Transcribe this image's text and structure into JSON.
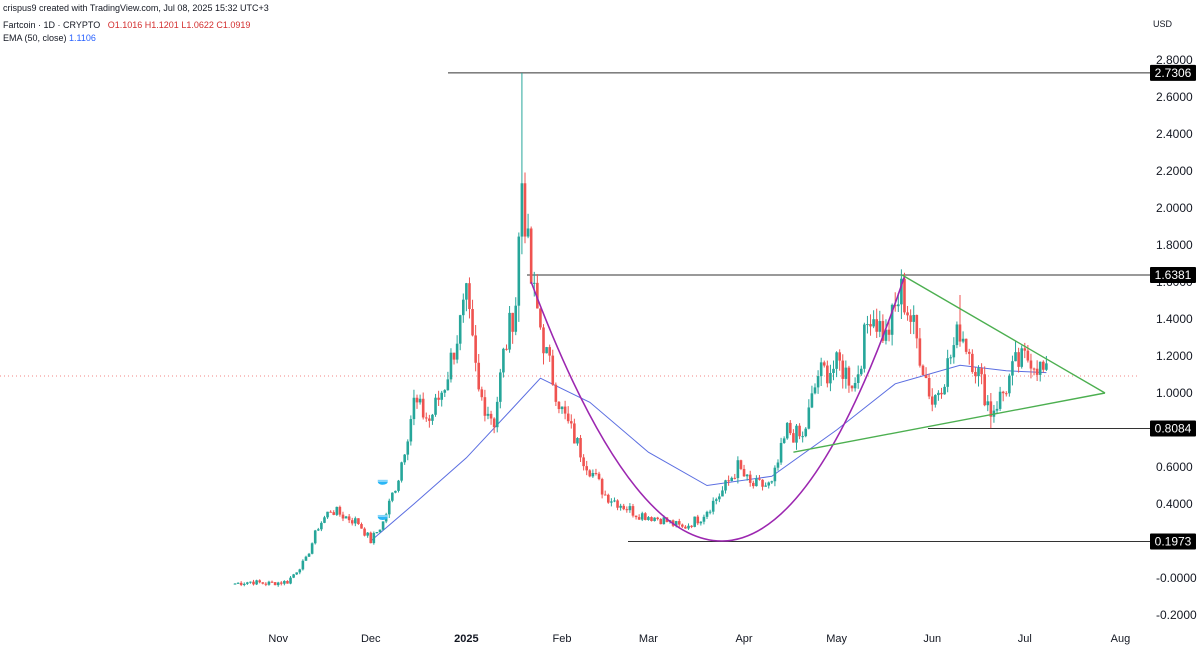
{
  "header": {
    "credit": "crispus9 created with TradingView.com, Jul 08, 2025 15:32 UTC+3",
    "symbol": "Fartcoin · 1D · CRYPTO",
    "o": "O1.1016",
    "h": "H1.1201",
    "l": "L1.0622",
    "c": "C1.0919",
    "ema_label": "EMA (50, close)",
    "ema_value": "1.1106",
    "currency": "USD"
  },
  "colors": {
    "up": "#26a69a",
    "down": "#ef5350",
    "ema": "#5b6ee1",
    "cup": "#9c27b0",
    "triangle": "#4caf50",
    "level": "#333333"
  },
  "chart_data": {
    "type": "candlestick",
    "y_unit": "USD",
    "ylim": [
      -0.25,
      2.85
    ],
    "yticks": [
      -0.2,
      0.0,
      0.2,
      0.4,
      0.6,
      0.8,
      1.0,
      1.2,
      1.4,
      1.6,
      1.8,
      2.0,
      2.2,
      2.4,
      2.6,
      2.8
    ],
    "ytick_labels": [
      "-0.2000",
      "-0.0000",
      "0.4000",
      "0.6000",
      "0.8000",
      "1.0000",
      "1.2000",
      "1.4000",
      "1.6000",
      "1.8000",
      "2.0000",
      "2.2000",
      "2.4000",
      "2.6000",
      "2.8000"
    ],
    "ytick_values": [
      -0.2,
      0.0,
      0.4,
      0.6,
      0.8,
      1.0,
      1.2,
      1.4,
      1.6,
      1.8,
      2.0,
      2.2,
      2.4,
      2.6,
      2.8
    ],
    "xlim": [
      "2024-10-18",
      "2025-08-05"
    ],
    "xticks": [
      {
        "date": "2024-11-01",
        "label": "Nov",
        "bold": false
      },
      {
        "date": "2024-12-01",
        "label": "Dec",
        "bold": false
      },
      {
        "date": "2025-01-01",
        "label": "2025",
        "bold": true
      },
      {
        "date": "2025-02-01",
        "label": "Feb",
        "bold": false
      },
      {
        "date": "2025-03-01",
        "label": "Mar",
        "bold": false
      },
      {
        "date": "2025-04-01",
        "label": "Apr",
        "bold": false
      },
      {
        "date": "2025-05-01",
        "label": "May",
        "bold": false
      },
      {
        "date": "2025-06-01",
        "label": "Jun",
        "bold": false
      },
      {
        "date": "2025-07-01",
        "label": "Jul",
        "bold": false
      },
      {
        "date": "2025-08-01",
        "label": "Aug",
        "bold": false
      }
    ],
    "close_keypoints": [
      [
        "2024-10-18",
        -0.03
      ],
      [
        "2024-10-23",
        -0.02
      ],
      [
        "2024-10-28",
        -0.03
      ],
      [
        "2024-11-04",
        -0.02
      ],
      [
        "2024-11-10",
        0.1
      ],
      [
        "2024-11-14",
        0.28
      ],
      [
        "2024-11-18",
        0.37
      ],
      [
        "2024-11-23",
        0.33
      ],
      [
        "2024-11-27",
        0.3
      ],
      [
        "2024-12-01",
        0.2
      ],
      [
        "2024-12-05",
        0.3
      ],
      [
        "2024-12-10",
        0.55
      ],
      [
        "2024-12-15",
        0.95
      ],
      [
        "2024-12-20",
        0.85
      ],
      [
        "2024-12-25",
        1.05
      ],
      [
        "2025-01-01",
        1.5
      ],
      [
        "2025-01-05",
        1.0
      ],
      [
        "2025-01-10",
        0.85
      ],
      [
        "2025-01-13",
        1.2
      ],
      [
        "2025-01-17",
        1.5
      ],
      [
        "2025-01-19",
        2.15
      ],
      [
        "2025-01-20",
        1.95
      ],
      [
        "2025-01-22",
        1.6
      ],
      [
        "2025-01-27",
        1.2
      ],
      [
        "2025-02-01",
        0.9
      ],
      [
        "2025-02-08",
        0.65
      ],
      [
        "2025-02-15",
        0.45
      ],
      [
        "2025-02-25",
        0.35
      ],
      [
        "2025-03-05",
        0.32
      ],
      [
        "2025-03-12",
        0.27
      ],
      [
        "2025-03-18",
        0.33
      ],
      [
        "2025-03-25",
        0.47
      ],
      [
        "2025-03-30",
        0.6
      ],
      [
        "2025-04-03",
        0.5
      ],
      [
        "2025-04-10",
        0.5
      ],
      [
        "2025-04-15",
        0.8
      ],
      [
        "2025-04-20",
        0.75
      ],
      [
        "2025-04-25",
        1.1
      ],
      [
        "2025-05-02",
        1.15
      ],
      [
        "2025-05-07",
        1.05
      ],
      [
        "2025-05-12",
        1.45
      ],
      [
        "2025-05-17",
        1.3
      ],
      [
        "2025-05-22",
        1.55
      ],
      [
        "2025-05-26",
        1.35
      ],
      [
        "2025-06-01",
        0.95
      ],
      [
        "2025-06-05",
        1.1
      ],
      [
        "2025-06-10",
        1.35
      ],
      [
        "2025-06-15",
        1.15
      ],
      [
        "2025-06-20",
        0.9
      ],
      [
        "2025-06-24",
        1.0
      ],
      [
        "2025-06-28",
        1.15
      ],
      [
        "2025-07-03",
        1.2
      ],
      [
        "2025-07-08",
        1.09
      ]
    ],
    "wick_spikes": [
      {
        "date": "2025-01-19",
        "high": 2.73,
        "low": 1.75
      },
      {
        "date": "2025-05-22",
        "high": 1.65,
        "low": 1.4
      },
      {
        "date": "2025-06-10",
        "high": 1.53,
        "low": 1.25
      },
      {
        "date": "2025-06-20",
        "high": 1.0,
        "low": 0.81
      }
    ],
    "ema50_keypoints": [
      [
        "2024-12-01",
        0.2
      ],
      [
        "2024-12-15",
        0.4
      ],
      [
        "2025-01-01",
        0.65
      ],
      [
        "2025-01-15",
        0.9
      ],
      [
        "2025-01-25",
        1.08
      ],
      [
        "2025-02-10",
        0.95
      ],
      [
        "2025-03-01",
        0.68
      ],
      [
        "2025-03-20",
        0.5
      ],
      [
        "2025-04-10",
        0.55
      ],
      [
        "2025-05-01",
        0.8
      ],
      [
        "2025-05-20",
        1.05
      ],
      [
        "2025-06-10",
        1.15
      ],
      [
        "2025-06-25",
        1.12
      ],
      [
        "2025-07-08",
        1.11
      ]
    ],
    "levels": [
      {
        "value": 2.7306,
        "label": "2.7306",
        "from": "2025-01-06",
        "highlight_box": true
      },
      {
        "value": 1.6381,
        "label": "1.6381",
        "from": "2025-01-22",
        "highlight_box": true
      },
      {
        "value": 0.8084,
        "label": "0.8084",
        "from": "2025-05-30",
        "highlight_box": true
      },
      {
        "value": 0.1973,
        "label": "0.1973",
        "from": "2025-02-25",
        "highlight_box": true
      }
    ],
    "last_price": 1.0919,
    "cup_curve": [
      [
        "2025-01-22",
        1.6
      ],
      [
        "2025-03-25",
        0.2
      ],
      [
        "2025-05-23",
        1.63
      ]
    ],
    "triangle_upper": [
      [
        "2025-05-22",
        1.64
      ],
      [
        "2025-07-27",
        1.0
      ]
    ],
    "triangle_lower": [
      [
        "2025-04-17",
        0.68
      ],
      [
        "2025-07-27",
        1.0
      ]
    ],
    "markers": [
      {
        "date": "2024-12-01",
        "value": 0.52
      },
      {
        "date": "2024-12-01",
        "value": 0.33
      }
    ]
  }
}
